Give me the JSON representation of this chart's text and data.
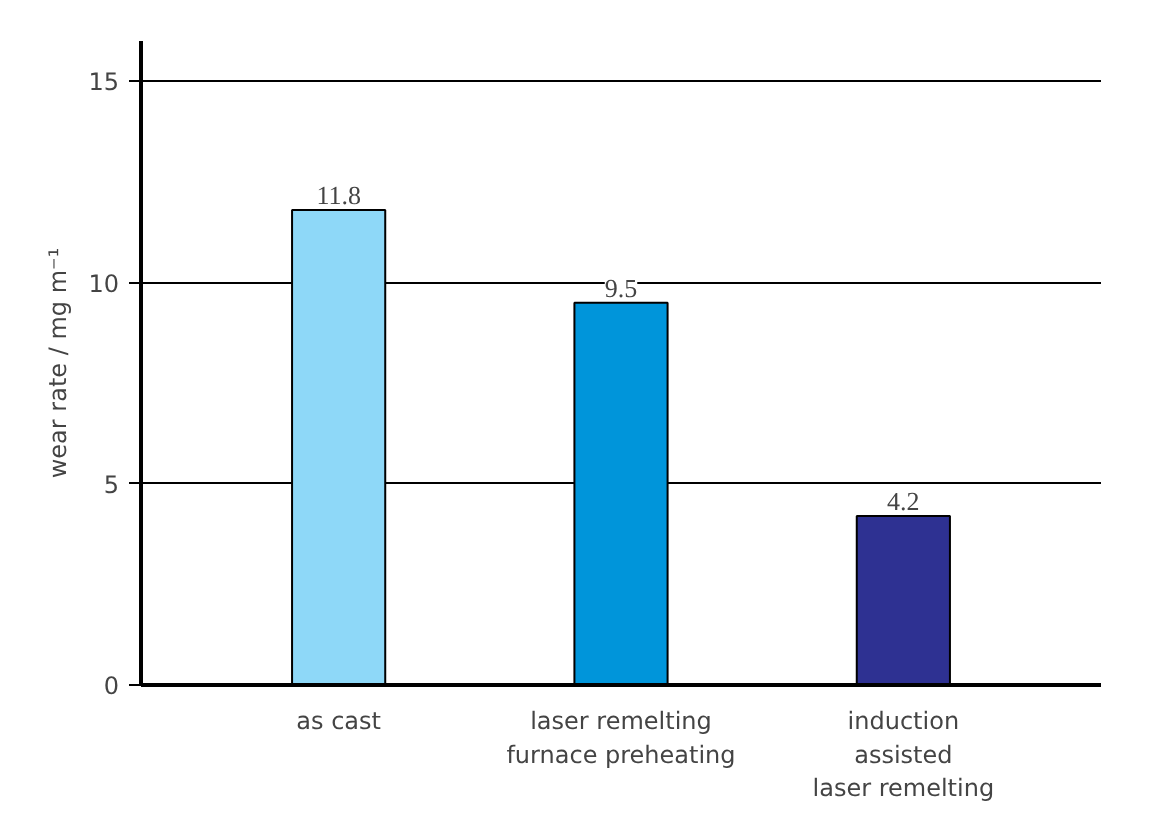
{
  "chart_data": {
    "type": "bar",
    "ylabel": "wear rate / mg m⁻¹",
    "categories": [
      "as cast",
      "laser remelting\nfurnace preheating",
      "induction\nassisted\nlaser remelting"
    ],
    "values": [
      11.8,
      9.5,
      4.2
    ],
    "colors": [
      "#8ed8f8",
      "#0095da",
      "#2e3192"
    ],
    "ylim": [
      0,
      16
    ],
    "yticks": [
      0,
      5,
      10,
      15
    ],
    "grid": "y",
    "data_labels": true
  }
}
